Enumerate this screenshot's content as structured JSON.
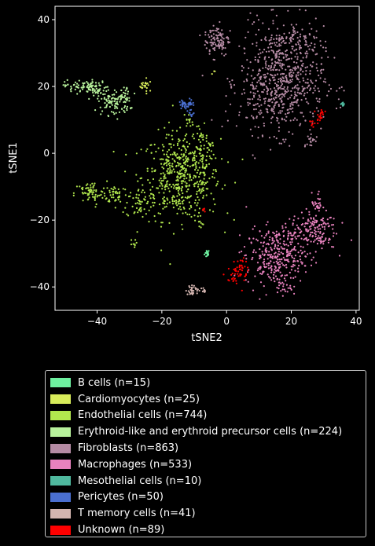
{
  "chart_data": {
    "type": "scatter",
    "title": "",
    "xlabel": "tSNE2",
    "ylabel": "tSNE1",
    "xlim": [
      -53,
      41
    ],
    "ylim": [
      -47,
      44
    ],
    "xticks": [
      -40,
      -20,
      0,
      20,
      40
    ],
    "xtick_labels": [
      "−40",
      "−20",
      "0",
      "20",
      "40"
    ],
    "yticks": [
      -40,
      -20,
      0,
      20,
      40
    ],
    "ytick_labels": [
      "−40",
      "−20",
      "0",
      "20",
      "40"
    ],
    "background": "#000000",
    "legend_position": "below",
    "series": [
      {
        "name": "B cells (n=15)",
        "color": "#6ef0a0",
        "clusters": [
          [
            -6,
            -30,
            0.4,
            0.6,
            15
          ]
        ]
      },
      {
        "name": "Cardiomyocytes (n=25)",
        "color": "#d8ec5a",
        "clusters": [
          [
            -24.5,
            20.5,
            0.8,
            1.0,
            12
          ],
          [
            -4,
            24.3,
            0.4,
            0.4,
            3
          ],
          [
            -25.5,
            20,
            0.6,
            0.6,
            10
          ]
        ]
      },
      {
        "name": "Endothelial cells (n=744)",
        "color": "#b2e84e",
        "clusters": [
          [
            -14,
            -7,
            6,
            6.5,
            520
          ],
          [
            -42,
            -12,
            2.5,
            1.8,
            70
          ],
          [
            -34,
            -12,
            1.8,
            1.5,
            40
          ],
          [
            -27,
            -15,
            2,
            2.2,
            45
          ],
          [
            -8,
            2,
            1.8,
            3,
            45
          ],
          [
            -29,
            -27,
            0.5,
            0.6,
            8
          ],
          [
            -8,
            -22,
            0.5,
            1.5,
            6
          ],
          [
            -12,
            10,
            0.8,
            1,
            10
          ]
        ]
      },
      {
        "name": "Erythroid-like and erythroid precursor cells (n=224)",
        "color": "#b8f29c",
        "clusters": [
          [
            -45,
            20,
            2.5,
            1,
            60
          ],
          [
            -40,
            19,
            2,
            1.2,
            40
          ],
          [
            -35,
            15.5,
            2.5,
            2,
            100
          ],
          [
            -31,
            17,
            1,
            1.5,
            24
          ]
        ]
      },
      {
        "name": "Fibroblasts (n=863)",
        "color": "#b58ba4",
        "clusters": [
          [
            17,
            22,
            6.5,
            8,
            640
          ],
          [
            -3,
            34,
            2,
            2.5,
            100
          ],
          [
            22,
            34,
            4,
            2.5,
            60
          ],
          [
            26,
            4,
            1,
            1,
            15
          ],
          [
            13,
            16,
            5,
            5,
            48
          ]
        ]
      },
      {
        "name": "Macrophages (n=533)",
        "color": "#e882be",
        "clusters": [
          [
            15,
            -31,
            4.5,
            4.2,
            300
          ],
          [
            27,
            -23,
            3.5,
            3,
            150
          ],
          [
            28,
            -15,
            0.8,
            1.5,
            25
          ],
          [
            18,
            -40,
            1.2,
            1.2,
            20
          ],
          [
            20,
            -24,
            3,
            2,
            38
          ]
        ]
      },
      {
        "name": "Mesothelial cells (n=10)",
        "color": "#4fb89e",
        "clusters": [
          [
            36,
            14.8,
            0.3,
            0.3,
            10
          ]
        ]
      },
      {
        "name": "Pericytes (n=50)",
        "color": "#4a6fd0",
        "clusters": [
          [
            -12.2,
            14.8,
            1.2,
            0.7,
            40
          ],
          [
            -11,
            12,
            0.5,
            0.7,
            10
          ]
        ]
      },
      {
        "name": "T memory cells (n=41)",
        "color": "#d4b5b0",
        "clusters": [
          [
            -10,
            -41,
            1.3,
            0.7,
            31
          ],
          [
            -7,
            -41,
            0.4,
            0.4,
            10
          ]
        ]
      },
      {
        "name": "Unknown (n=89)",
        "color": "#ff0000",
        "clusters": [
          [
            4,
            -35,
            1.2,
            2,
            45
          ],
          [
            1,
            -37,
            0.8,
            1,
            10
          ],
          [
            29,
            11.5,
            0.6,
            1.2,
            20
          ],
          [
            26,
            9,
            0.5,
            0.6,
            8
          ],
          [
            -7,
            -17,
            0.3,
            0.3,
            6
          ]
        ]
      }
    ]
  }
}
